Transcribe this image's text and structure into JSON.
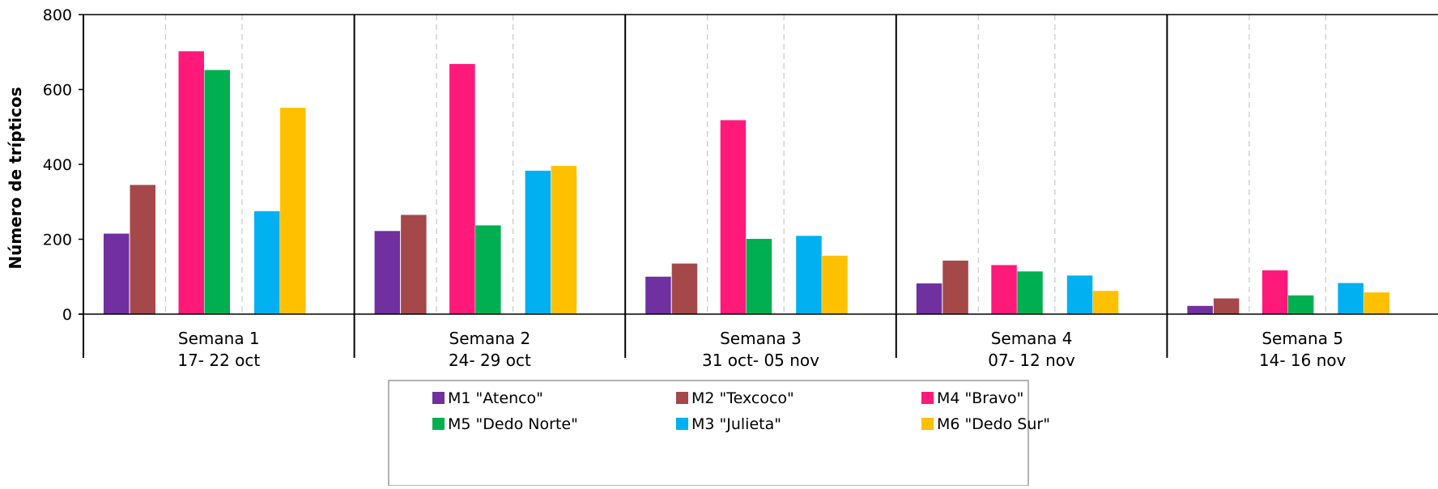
{
  "chart_data": {
    "type": "bar",
    "ylabel": "Número de trípticos",
    "ylim": [
      0,
      800
    ],
    "yticks": [
      0,
      200,
      400,
      600,
      800
    ],
    "grid": false,
    "legend_position": "bottom-center",
    "group_separators": "dashed",
    "categories": [
      {
        "line1": "Semana 1",
        "line2": "17- 22 oct"
      },
      {
        "line1": "Semana 2",
        "line2": "24- 29 oct"
      },
      {
        "line1": "Semana 3",
        "line2": "31 oct- 05 nov"
      },
      {
        "line1": "Semana 4",
        "line2": "07- 12 nov"
      },
      {
        "line1": "Semana 5",
        "line2": "14- 16 nov"
      }
    ],
    "series": [
      {
        "name": "M1 \"Atenco\"",
        "color": "#7030A0",
        "values": [
          215,
          222,
          100,
          82,
          22
        ]
      },
      {
        "name": "M2 \"Texcoco\"",
        "color": "#A5484A",
        "values": [
          345,
          265,
          135,
          143,
          42
        ]
      },
      {
        "name": "M4  \"Bravo\"",
        "color": "#FF1A79",
        "values": [
          702,
          668,
          518,
          131,
          117
        ]
      },
      {
        "name": "M5  \"Dedo Norte\"",
        "color": "#00B050",
        "values": [
          652,
          237,
          201,
          114,
          50
        ]
      },
      {
        "name": "M3  \"Julieta\"",
        "color": "#00B0F0",
        "values": [
          275,
          383,
          209,
          103,
          83
        ]
      },
      {
        "name": "M6  \"Dedo Sur\"",
        "color": "#FFC000",
        "values": [
          551,
          396,
          156,
          62,
          58
        ]
      }
    ]
  }
}
